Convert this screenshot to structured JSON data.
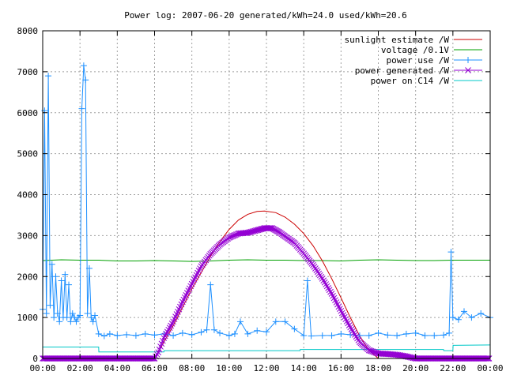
{
  "chart_data": {
    "type": "line",
    "title": "Power log: 2007-06-20 generated/kWh=24.0 used/kWh=20.6",
    "xlabel": "",
    "ylabel": "",
    "x_unit": "hours",
    "xlim": [
      0,
      24
    ],
    "ylim": [
      0,
      8000
    ],
    "grid": true,
    "legend_position": "top-right",
    "x_ticks": [
      {
        "value": 0,
        "label": "00:00"
      },
      {
        "value": 2,
        "label": "02:00"
      },
      {
        "value": 4,
        "label": "04:00"
      },
      {
        "value": 6,
        "label": "06:00"
      },
      {
        "value": 8,
        "label": "08:00"
      },
      {
        "value": 10,
        "label": "10:00"
      },
      {
        "value": 12,
        "label": "12:00"
      },
      {
        "value": 14,
        "label": "14:00"
      },
      {
        "value": 16,
        "label": "16:00"
      },
      {
        "value": 18,
        "label": "18:00"
      },
      {
        "value": 20,
        "label": "20:00"
      },
      {
        "value": 22,
        "label": "22:00"
      },
      {
        "value": 24,
        "label": "00:00"
      }
    ],
    "y_ticks": [
      {
        "value": 0,
        "label": "0"
      },
      {
        "value": 1000,
        "label": "1000"
      },
      {
        "value": 2000,
        "label": "2000"
      },
      {
        "value": 3000,
        "label": "3000"
      },
      {
        "value": 4000,
        "label": "4000"
      },
      {
        "value": 5000,
        "label": "5000"
      },
      {
        "value": 6000,
        "label": "6000"
      },
      {
        "value": 7000,
        "label": "7000"
      },
      {
        "value": 8000,
        "label": "8000"
      }
    ],
    "series": [
      {
        "name": "sunlight estimate /W",
        "color": "#cc0000",
        "style": "line",
        "x": [
          6.0,
          6.5,
          7.0,
          7.5,
          8.0,
          8.5,
          9.0,
          9.5,
          10.0,
          10.5,
          11.0,
          11.5,
          11.9,
          12.5,
          13.0,
          13.5,
          14.0,
          14.5,
          15.0,
          15.5,
          16.0,
          16.5,
          17.0,
          17.5,
          18.0
        ],
        "y": [
          0,
          400,
          800,
          1250,
          1700,
          2100,
          2500,
          2850,
          3150,
          3380,
          3520,
          3590,
          3600,
          3560,
          3450,
          3280,
          3050,
          2750,
          2380,
          1950,
          1480,
          1000,
          550,
          200,
          0
        ]
      },
      {
        "name": "voltage /0.1V",
        "color": "#00a000",
        "style": "line",
        "x": [
          0,
          1,
          2,
          3,
          4,
          5,
          6,
          7,
          8,
          9,
          10,
          11,
          12,
          13,
          14,
          15,
          16,
          17,
          18,
          19,
          20,
          21,
          22,
          23,
          24
        ],
        "y": [
          2390,
          2410,
          2400,
          2400,
          2380,
          2380,
          2390,
          2380,
          2370,
          2380,
          2400,
          2410,
          2400,
          2400,
          2390,
          2390,
          2380,
          2400,
          2410,
          2400,
          2390,
          2390,
          2400,
          2400,
          2400
        ]
      },
      {
        "name": "power use /W",
        "color": "#1e90ff",
        "style": "linespoints-plus",
        "x": [
          0.0,
          0.1,
          0.2,
          0.3,
          0.4,
          0.5,
          0.6,
          0.7,
          0.8,
          0.9,
          1.0,
          1.1,
          1.2,
          1.3,
          1.4,
          1.5,
          1.6,
          1.7,
          1.8,
          1.9,
          2.0,
          2.1,
          2.2,
          2.3,
          2.4,
          2.5,
          2.6,
          2.7,
          2.8,
          3.0,
          3.3,
          3.6,
          4.0,
          4.5,
          5.0,
          5.5,
          6.0,
          6.5,
          7.0,
          7.5,
          8.0,
          8.5,
          8.8,
          9.0,
          9.2,
          9.5,
          10.0,
          10.3,
          10.6,
          11.0,
          11.5,
          12.0,
          12.5,
          13.0,
          13.5,
          14.0,
          14.2,
          14.4,
          15.0,
          15.5,
          16.0,
          16.5,
          17.0,
          17.5,
          18.0,
          18.5,
          19.0,
          19.5,
          20.0,
          20.5,
          21.0,
          21.5,
          21.8,
          21.9,
          22.0,
          22.3,
          22.6,
          23.0,
          23.5,
          24.0
        ],
        "y": [
          1200,
          6050,
          1100,
          6900,
          1300,
          2300,
          1000,
          2000,
          1100,
          900,
          1900,
          1000,
          2050,
          1000,
          1800,
          900,
          1100,
          1000,
          900,
          1000,
          1050,
          6100,
          7150,
          6800,
          1100,
          2200,
          1000,
          900,
          1050,
          600,
          550,
          600,
          560,
          580,
          560,
          600,
          570,
          600,
          560,
          620,
          580,
          640,
          700,
          1800,
          700,
          620,
          560,
          600,
          900,
          600,
          680,
          650,
          900,
          900,
          720,
          560,
          1900,
          550,
          560,
          560,
          600,
          580,
          560,
          560,
          620,
          570,
          560,
          600,
          620,
          560,
          560,
          570,
          620,
          2600,
          1000,
          950,
          1150,
          1000,
          1100,
          1000
        ]
      },
      {
        "name": "power generated /W",
        "color": "#9400d3",
        "style": "linespoints-x",
        "x": [
          0,
          6.0,
          6.2,
          6.5,
          7.0,
          7.5,
          8.0,
          8.5,
          9.0,
          9.5,
          10.0,
          10.5,
          11.0,
          11.5,
          11.9,
          12.3,
          12.7,
          13.0,
          13.5,
          14.0,
          14.5,
          15.0,
          15.5,
          16.0,
          16.5,
          17.0,
          17.5,
          18.0,
          18.5,
          19.0,
          19.5,
          20.0,
          21.0,
          22.0,
          23.0,
          24.0
        ],
        "y": [
          0,
          0,
          150,
          500,
          900,
          1380,
          1820,
          2250,
          2550,
          2780,
          2950,
          3050,
          3070,
          3130,
          3180,
          3180,
          3080,
          2980,
          2820,
          2560,
          2280,
          1950,
          1580,
          1160,
          760,
          400,
          200,
          120,
          110,
          90,
          50,
          0,
          0,
          0,
          0,
          0
        ]
      },
      {
        "name": "power on C14 /W",
        "color": "#00c8c8",
        "style": "line",
        "x": [
          0,
          3.0,
          3.01,
          6.5,
          6.51,
          13.8,
          13.81,
          21.5,
          21.51,
          22.0,
          22.01,
          24.0
        ],
        "y": [
          280,
          280,
          160,
          160,
          190,
          190,
          220,
          220,
          190,
          190,
          320,
          330
        ]
      }
    ]
  }
}
